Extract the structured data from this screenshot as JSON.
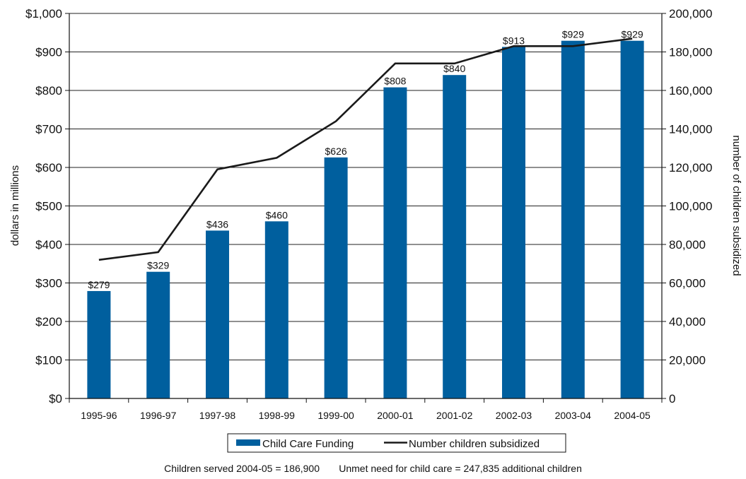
{
  "chart_data": {
    "type": "bar",
    "categories": [
      "1995-96",
      "1996-97",
      "1997-98",
      "1998-99",
      "1999-00",
      "2000-01",
      "2001-02",
      "2002-03",
      "2003-04",
      "2004-05"
    ],
    "series": [
      {
        "name": "Child Care Funding",
        "type": "bar",
        "axis": "left",
        "values": [
          279,
          329,
          436,
          460,
          626,
          808,
          840,
          913,
          929,
          929
        ],
        "labels": [
          "$279",
          "$329",
          "$436",
          "$460",
          "$626",
          "$808",
          "$840",
          "$913",
          "$929",
          "$929"
        ],
        "color": "#005f9e"
      },
      {
        "name": "Number children subsidized",
        "type": "line",
        "axis": "right",
        "values": [
          72000,
          76000,
          119000,
          125000,
          144000,
          174000,
          174000,
          183000,
          183000,
          186900
        ],
        "color": "#1a1a1a"
      }
    ],
    "ylabel": "dollars in millions",
    "y2label": "number of children subsidized",
    "ylim": [
      0,
      1000
    ],
    "y2lim": [
      0,
      200000
    ],
    "yticks": [
      "$0",
      "$100",
      "$200",
      "$300",
      "$400",
      "$500",
      "$600",
      "$700",
      "$800",
      "$900",
      "$1,000"
    ],
    "y2ticks": [
      "0",
      "20,000",
      "40,000",
      "60,000",
      "80,000",
      "100,000",
      "120,000",
      "140,000",
      "160,000",
      "180,000",
      "200,000"
    ],
    "grid": true,
    "legend": "bottom"
  },
  "footnote": {
    "served": "Children served 2004-05 = 186,900",
    "unmet": "Unmet need for child care = 247,835 additional children"
  }
}
